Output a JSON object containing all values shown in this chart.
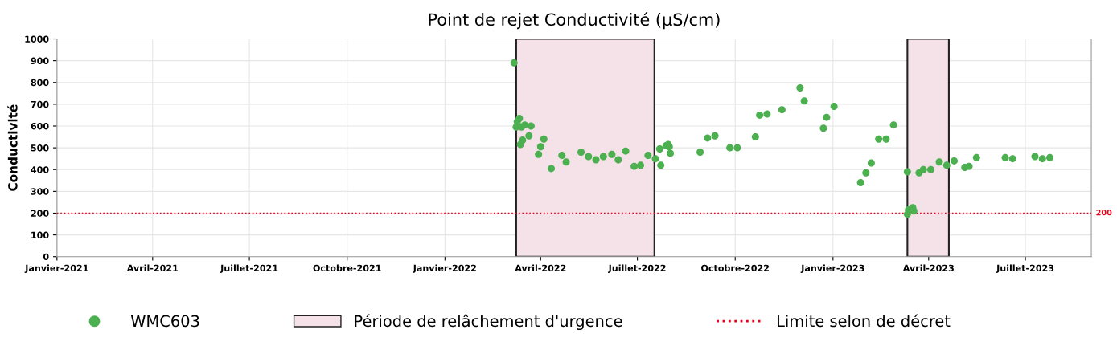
{
  "chart_data": {
    "type": "scatter",
    "title": "Point de rejet Conductivité (µS/cm)",
    "ylabel": "Conductivité",
    "xlim": [
      "2021-01-01",
      "2023-09-01"
    ],
    "ylim": [
      0,
      1000
    ],
    "yticks": [
      0,
      100,
      200,
      300,
      400,
      500,
      600,
      700,
      800,
      900,
      1000
    ],
    "xticks": [
      {
        "value": "2021-01-01",
        "label": "Janvier-2021"
      },
      {
        "value": "2021-04-01",
        "label": "Avril-2021"
      },
      {
        "value": "2021-07-01",
        "label": "Juillet-2021"
      },
      {
        "value": "2021-10-01",
        "label": "Octobre-2021"
      },
      {
        "value": "2022-01-01",
        "label": "Janvier-2022"
      },
      {
        "value": "2022-04-01",
        "label": "Avril-2022"
      },
      {
        "value": "2022-07-01",
        "label": "Juillet-2022"
      },
      {
        "value": "2022-10-01",
        "label": "Octobre-2022"
      },
      {
        "value": "2023-01-01",
        "label": "Janvier-2023"
      },
      {
        "value": "2023-04-01",
        "label": "Avril-2023"
      },
      {
        "value": "2023-07-01",
        "label": "Juillet-2023"
      }
    ],
    "grid": true,
    "legend": "bottom",
    "marker": "circle",
    "series": [
      {
        "name": "WMC603",
        "color": "#4caf50",
        "x": [
          "2022-03-07",
          "2022-03-09",
          "2022-03-10",
          "2022-03-12",
          "2022-03-14",
          "2022-03-17",
          "2022-03-13",
          "2022-03-15",
          "2022-03-21",
          "2022-03-23",
          "2022-03-30",
          "2022-04-01",
          "2022-04-04",
          "2022-04-11",
          "2022-04-21",
          "2022-04-25",
          "2022-05-09",
          "2022-05-16",
          "2022-05-23",
          "2022-05-30",
          "2022-06-07",
          "2022-06-13",
          "2022-06-20",
          "2022-06-28",
          "2022-07-04",
          "2022-07-11",
          "2022-07-18",
          "2022-07-22",
          "2022-07-23",
          "2022-07-28",
          "2022-07-30",
          "2022-07-31",
          "2022-08-01",
          "2022-08-29",
          "2022-09-05",
          "2022-09-12",
          "2022-09-26",
          "2022-10-03",
          "2022-10-20",
          "2022-10-24",
          "2022-10-31",
          "2022-11-14",
          "2022-12-01",
          "2022-12-05",
          "2022-12-23",
          "2022-12-26",
          "2023-01-02",
          "2023-01-27",
          "2023-02-01",
          "2023-02-06",
          "2023-02-13",
          "2023-02-20",
          "2023-02-27",
          "2023-03-12",
          "2023-03-12",
          "2023-03-13",
          "2023-03-17",
          "2023-03-18",
          "2023-03-23",
          "2023-03-27",
          "2023-04-03",
          "2023-04-11",
          "2023-04-18",
          "2023-04-25",
          "2023-05-05",
          "2023-05-09",
          "2023-05-16",
          "2023-06-12",
          "2023-06-19",
          "2023-07-10",
          "2023-07-17",
          "2023-07-24"
        ],
        "values": [
          890,
          595,
          620,
          635,
          595,
          605,
          515,
          535,
          555,
          600,
          470,
          505,
          540,
          405,
          465,
          435,
          480,
          460,
          445,
          460,
          470,
          445,
          485,
          415,
          420,
          465,
          450,
          495,
          420,
          510,
          515,
          505,
          475,
          480,
          545,
          555,
          500,
          500,
          550,
          650,
          655,
          675,
          775,
          715,
          590,
          640,
          690,
          340,
          385,
          430,
          540,
          540,
          605,
          390,
          195,
          215,
          225,
          210,
          385,
          400,
          400,
          435,
          420,
          440,
          410,
          415,
          455,
          455,
          450,
          460,
          450,
          455
        ]
      }
    ],
    "bands": [
      {
        "axis": "x",
        "from": "2022-03-09",
        "to": "2022-07-17",
        "label": "Période de relâchement d'urgence",
        "color": "#f5e1e8"
      },
      {
        "axis": "x",
        "from": "2023-03-12",
        "to": "2023-04-20",
        "color": "#f5e1e8"
      }
    ],
    "ref_lines": [
      {
        "axis": "y",
        "value": 200,
        "label": "Limite selon de décret",
        "color": "#e8001c",
        "line_style": "dotted"
      }
    ],
    "annotations": [
      "200"
    ]
  }
}
